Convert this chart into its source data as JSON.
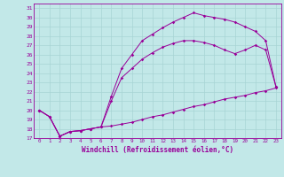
{
  "xlabel": "Windchill (Refroidissement éolien,°C)",
  "bg_color": "#c2e8e8",
  "grid_color": "#a8d4d4",
  "line_color": "#990099",
  "xlim": [
    -0.5,
    23.5
  ],
  "ylim": [
    17,
    31.5
  ],
  "xticks": [
    0,
    1,
    2,
    3,
    4,
    5,
    6,
    7,
    8,
    9,
    10,
    11,
    12,
    13,
    14,
    15,
    16,
    17,
    18,
    19,
    20,
    21,
    22,
    23
  ],
  "yticks": [
    17,
    18,
    19,
    20,
    21,
    22,
    23,
    24,
    25,
    26,
    27,
    28,
    29,
    30,
    31
  ],
  "line1_x": [
    0,
    1,
    2,
    3,
    4,
    5,
    6,
    7,
    8,
    9,
    10,
    11,
    12,
    13,
    14,
    15,
    16,
    17,
    18,
    19,
    20,
    21,
    22,
    23
  ],
  "line1_y": [
    20.0,
    19.3,
    17.2,
    17.7,
    17.8,
    18.0,
    18.2,
    18.3,
    18.5,
    18.7,
    19.0,
    19.3,
    19.5,
    19.8,
    20.1,
    20.4,
    20.6,
    20.9,
    21.2,
    21.4,
    21.6,
    21.9,
    22.1,
    22.4
  ],
  "line2_x": [
    0,
    1,
    2,
    3,
    4,
    5,
    6,
    7,
    8,
    9,
    10,
    11,
    12,
    13,
    14,
    15,
    16,
    17,
    18,
    19,
    20,
    21,
    22,
    23
  ],
  "line2_y": [
    20.0,
    19.3,
    17.2,
    17.7,
    17.8,
    18.0,
    18.2,
    21.0,
    23.5,
    24.5,
    25.5,
    26.2,
    26.8,
    27.2,
    27.5,
    27.5,
    27.3,
    27.0,
    26.5,
    26.1,
    26.5,
    27.0,
    26.5,
    22.5
  ],
  "line3_x": [
    0,
    1,
    2,
    3,
    4,
    5,
    6,
    7,
    8,
    9,
    10,
    11,
    12,
    13,
    14,
    15,
    16,
    17,
    18,
    19,
    20,
    21,
    22,
    23
  ],
  "line3_y": [
    20.0,
    19.3,
    17.2,
    17.7,
    17.8,
    18.0,
    18.2,
    21.5,
    24.5,
    26.0,
    27.5,
    28.2,
    28.9,
    29.5,
    30.0,
    30.5,
    30.2,
    30.0,
    29.8,
    29.5,
    29.0,
    28.5,
    27.5,
    22.5
  ]
}
